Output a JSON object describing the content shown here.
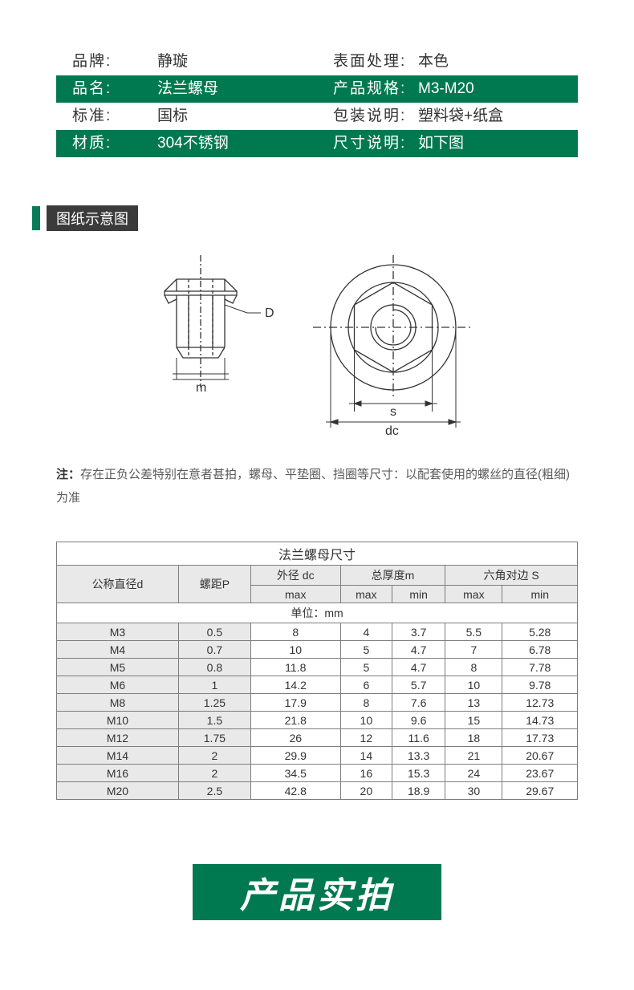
{
  "colors": {
    "brand_green": "#017950",
    "dark_bg": "#3b3b3b",
    "table_header_bg": "#e9e9e9",
    "table_border": "#7d7d7d",
    "text": "#333333",
    "text_muted": "#5a5a5a",
    "white": "#ffffff"
  },
  "info": {
    "rows": [
      {
        "dark": false,
        "left_label": "品牌",
        "left_value": "静璇",
        "right_label": "表面处理",
        "right_value": "本色"
      },
      {
        "dark": true,
        "left_label": "品名",
        "left_value": "法兰螺母",
        "right_label": "产品规格",
        "right_value": "M3-M20"
      },
      {
        "dark": false,
        "left_label": "标准",
        "left_value": "国标",
        "right_label": "包装说明",
        "right_value": "塑料袋+纸盒"
      },
      {
        "dark": true,
        "left_label": "材质",
        "left_value": "304不锈钢",
        "right_label": "尺寸说明",
        "right_value": "如下图"
      }
    ]
  },
  "section_title": "图纸示意图",
  "diagram": {
    "labels": {
      "D": "D",
      "m": "m",
      "s": "s",
      "dc": "dc"
    },
    "stroke_color": "#333333",
    "stroke_width": 1.2,
    "center_line_color": "#333333"
  },
  "note": {
    "prefix": "注：",
    "text": "存在正负公差特别在意者甚拍，螺母、平垫圈、挡圈等尺寸：以配套使用的螺丝的直径(粗细)为准"
  },
  "table": {
    "title": "法兰螺母尺寸",
    "unit_label": "单位：mm",
    "header_top": [
      {
        "label": "公称直径d",
        "rowspan": 2
      },
      {
        "label": "螺距P",
        "rowspan": 2
      },
      {
        "label": "外径 dc",
        "colspan": 1
      },
      {
        "label": "总厚度m",
        "colspan": 2
      },
      {
        "label": "六角对边 S",
        "colspan": 2
      }
    ],
    "header_sub": [
      "max",
      "max",
      "min",
      "max",
      "min"
    ],
    "rows": [
      [
        "M3",
        "0.5",
        "8",
        "4",
        "3.7",
        "5.5",
        "5.28"
      ],
      [
        "M4",
        "0.7",
        "10",
        "5",
        "4.7",
        "7",
        "6.78"
      ],
      [
        "M5",
        "0.8",
        "11.8",
        "5",
        "4.7",
        "8",
        "7.78"
      ],
      [
        "M6",
        "1",
        "14.2",
        "6",
        "5.7",
        "10",
        "9.78"
      ],
      [
        "M8",
        "1.25",
        "17.9",
        "8",
        "7.6",
        "13",
        "12.73"
      ],
      [
        "M10",
        "1.5",
        "21.8",
        "10",
        "9.6",
        "15",
        "14.73"
      ],
      [
        "M12",
        "1.75",
        "26",
        "12",
        "11.6",
        "18",
        "17.73"
      ],
      [
        "M14",
        "2",
        "29.9",
        "14",
        "13.3",
        "21",
        "20.67"
      ],
      [
        "M16",
        "2",
        "34.5",
        "16",
        "15.3",
        "24",
        "23.67"
      ],
      [
        "M20",
        "2.5",
        "42.8",
        "20",
        "18.9",
        "30",
        "29.67"
      ]
    ]
  },
  "banner_text": "产品实拍"
}
